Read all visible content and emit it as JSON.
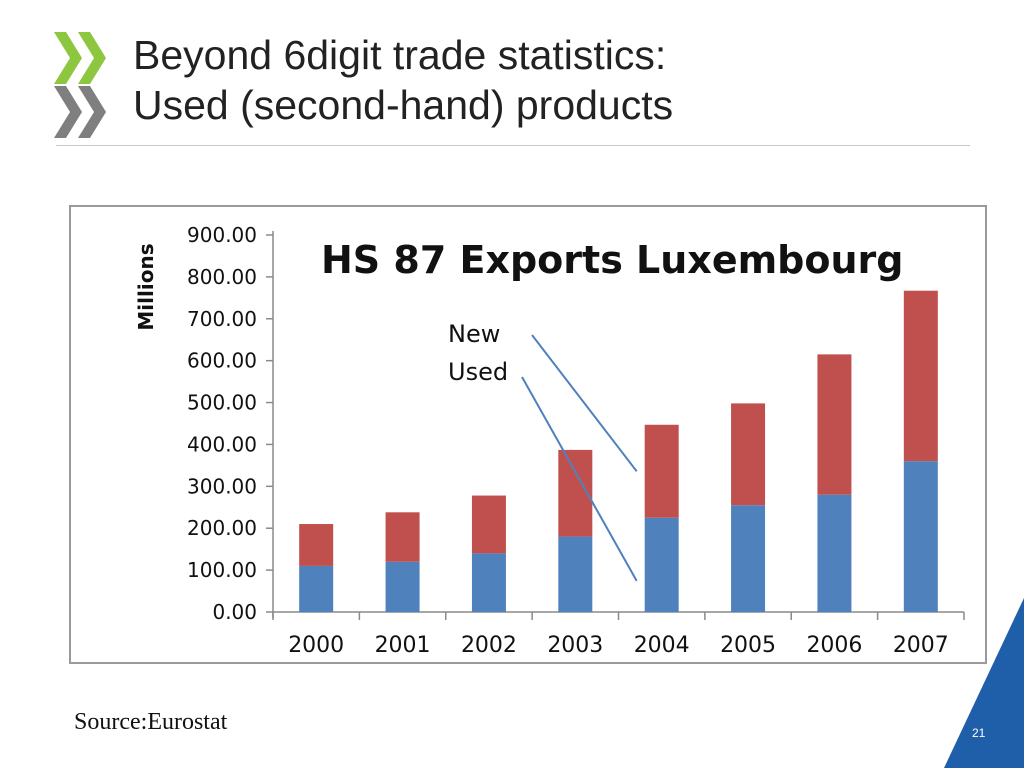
{
  "slide": {
    "title_line1": "Beyond 6digit trade statistics:",
    "title_line2": "Used (second-hand) products",
    "source": "Source:Eurostat",
    "page_number": "21",
    "colors": {
      "logo_green": "#8dc63f",
      "logo_gray": "#7f7f7f",
      "corner_blue": "#1f5ea8",
      "title_text": "#222222"
    }
  },
  "chart_data": {
    "type": "bar",
    "stacked": true,
    "title": "HS 87 Exports Luxembourg",
    "ylabel": "Millions",
    "xlabel": "",
    "categories": [
      "2000",
      "2001",
      "2002",
      "2003",
      "2004",
      "2005",
      "2006",
      "2007"
    ],
    "ylim": [
      0,
      900
    ],
    "yticks": [
      "0.00",
      "100.00",
      "200.00",
      "300.00",
      "400.00",
      "500.00",
      "600.00",
      "700.00",
      "800.00",
      "900.00"
    ],
    "series": [
      {
        "name": "Used",
        "color": "#4f81bd",
        "values": [
          110,
          120,
          140,
          180,
          225,
          255,
          280,
          360
        ]
      },
      {
        "name": "New",
        "color": "#c0504d",
        "values": [
          100,
          118,
          138,
          207,
          222,
          243,
          335,
          407
        ]
      }
    ],
    "annotations": [
      {
        "text": "New",
        "points_to": "2004",
        "series": "New"
      },
      {
        "text": "Used",
        "points_to": "2004",
        "series": "Used"
      }
    ],
    "grid": false,
    "legend": "none"
  }
}
